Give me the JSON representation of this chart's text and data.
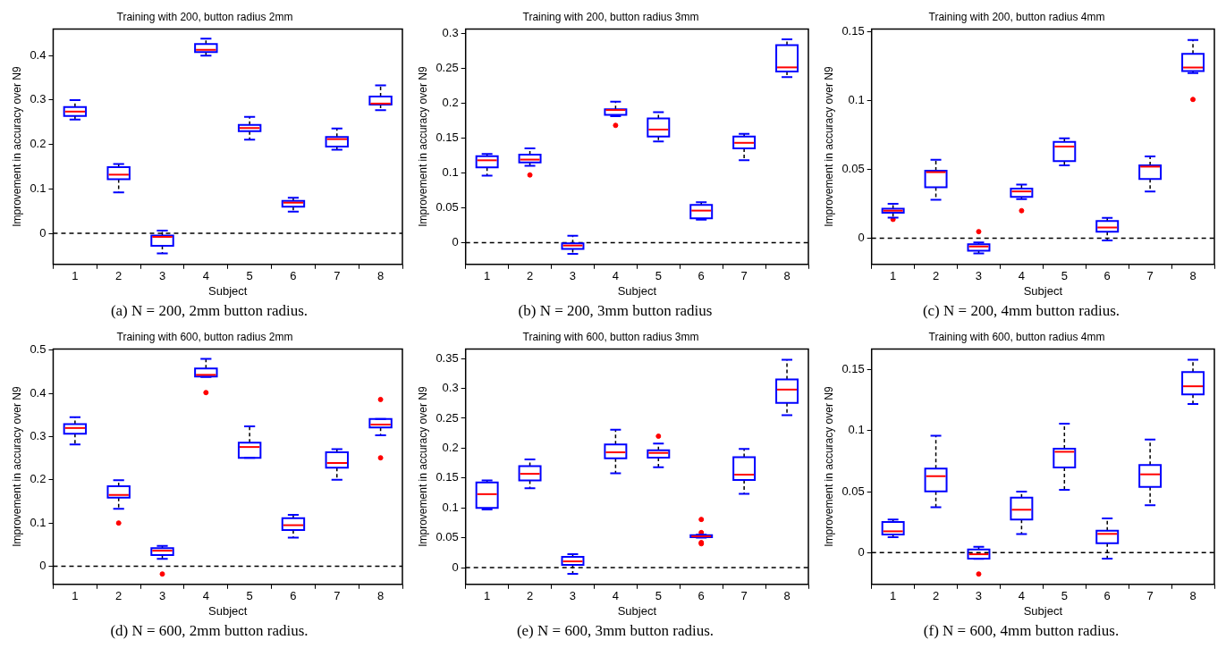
{
  "chart_data": [
    {
      "type": "box",
      "title": "Training with 200, button radius 2mm",
      "xlabel": "Subject",
      "ylabel": "Improvement in accuracy over N9",
      "categories": [
        "1",
        "2",
        "3",
        "4",
        "5",
        "6",
        "7",
        "8"
      ],
      "ylim": [
        -0.07,
        0.46
      ],
      "yticks": [
        0,
        0.1,
        0.2,
        0.3,
        0.4
      ],
      "grid": false,
      "series": [
        {
          "color": "#0000ff",
          "boxes": [
            {
              "low": 0.256,
              "q1": 0.264,
              "median": 0.274,
              "q3": 0.284,
              "high": 0.3
            },
            {
              "low": 0.092,
              "q1": 0.122,
              "median": 0.132,
              "q3": 0.149,
              "high": 0.156
            },
            {
              "low": -0.045,
              "q1": -0.028,
              "median": -0.008,
              "q3": -0.005,
              "high": 0.006
            },
            {
              "low": 0.4,
              "q1": 0.408,
              "median": 0.413,
              "q3": 0.426,
              "high": 0.438
            },
            {
              "low": 0.211,
              "q1": 0.23,
              "median": 0.237,
              "q3": 0.244,
              "high": 0.262
            },
            {
              "low": 0.049,
              "q1": 0.06,
              "median": 0.069,
              "q3": 0.073,
              "high": 0.08
            },
            {
              "low": 0.188,
              "q1": 0.195,
              "median": 0.212,
              "q3": 0.217,
              "high": 0.236
            },
            {
              "low": 0.277,
              "q1": 0.29,
              "median": 0.292,
              "q3": 0.308,
              "high": 0.333
            }
          ]
        }
      ],
      "ref_lines": [
        {
          "axis": "y",
          "value": 0,
          "color": "#000000",
          "line_style": "dashed"
        }
      ],
      "annotations": [
        "(a)  N = 200, 2mm button radius."
      ]
    },
    {
      "type": "box",
      "title": "Training with 200, button radius 3mm",
      "xlabel": "Subject",
      "ylabel": "Improvement in accuracy over N9",
      "categories": [
        "1",
        "2",
        "3",
        "4",
        "5",
        "6",
        "7",
        "8"
      ],
      "ylim": [
        -0.031,
        0.306
      ],
      "yticks": [
        0,
        0.05,
        0.1,
        0.15,
        0.2,
        0.25,
        0.3
      ],
      "grid": false,
      "series": [
        {
          "color": "#0000ff",
          "boxes": [
            {
              "low": 0.096,
              "q1": 0.108,
              "median": 0.118,
              "q3": 0.124,
              "high": 0.127
            },
            {
              "low": 0.11,
              "q1": 0.115,
              "median": 0.119,
              "q3": 0.126,
              "high": 0.135,
              "outliers": [
                0.097
              ]
            },
            {
              "low": -0.016,
              "q1": -0.009,
              "median": -0.004,
              "q3": -0.001,
              "high": 0.01
            },
            {
              "low": 0.181,
              "q1": 0.183,
              "median": 0.19,
              "q3": 0.191,
              "high": 0.202,
              "outliers": [
                0.168
              ]
            },
            {
              "low": 0.145,
              "q1": 0.152,
              "median": 0.162,
              "q3": 0.178,
              "high": 0.187
            },
            {
              "low": 0.033,
              "q1": 0.035,
              "median": 0.046,
              "q3": 0.054,
              "high": 0.058
            },
            {
              "low": 0.118,
              "q1": 0.135,
              "median": 0.143,
              "q3": 0.152,
              "high": 0.156
            },
            {
              "low": 0.237,
              "q1": 0.245,
              "median": 0.251,
              "q3": 0.283,
              "high": 0.291
            }
          ]
        }
      ],
      "ref_lines": [
        {
          "axis": "y",
          "value": 0,
          "color": "#000000",
          "line_style": "dashed"
        }
      ],
      "annotations": [
        "(b)  N = 200, 3mm button radius"
      ]
    },
    {
      "type": "box",
      "title": "Training with 200, button radius 4mm",
      "xlabel": "Subject",
      "ylabel": "Improvement in accuracy over N9",
      "categories": [
        "1",
        "2",
        "3",
        "4",
        "5",
        "6",
        "7",
        "8"
      ],
      "ylim": [
        -0.019,
        0.152
      ],
      "yticks": [
        0,
        0.05,
        0.1,
        0.15
      ],
      "grid": false,
      "series": [
        {
          "color": "#0000ff",
          "boxes": [
            {
              "low": 0.015,
              "q1": 0.0185,
              "median": 0.02,
              "q3": 0.0214,
              "high": 0.025,
              "outliers": [
                0.0137
              ]
            },
            {
              "low": 0.028,
              "q1": 0.037,
              "median": 0.048,
              "q3": 0.049,
              "high": 0.057
            },
            {
              "low": -0.011,
              "q1": -0.009,
              "median": -0.006,
              "q3": -0.0043,
              "high": -0.003,
              "outliers": [
                0.0048
              ]
            },
            {
              "low": 0.0285,
              "q1": 0.03,
              "median": 0.034,
              "q3": 0.036,
              "high": 0.039,
              "outliers": [
                0.02
              ]
            },
            {
              "low": 0.053,
              "q1": 0.056,
              "median": 0.0666,
              "q3": 0.07,
              "high": 0.0725
            },
            {
              "low": -0.0016,
              "q1": 0.0048,
              "median": 0.0078,
              "q3": 0.0125,
              "high": 0.0148
            },
            {
              "low": 0.034,
              "q1": 0.043,
              "median": 0.052,
              "q3": 0.053,
              "high": 0.0595
            },
            {
              "low": 0.12,
              "q1": 0.1215,
              "median": 0.124,
              "q3": 0.134,
              "high": 0.144,
              "outliers": [
                0.1008
              ]
            }
          ]
        }
      ],
      "ref_lines": [
        {
          "axis": "y",
          "value": 0,
          "color": "#000000",
          "line_style": "dashed"
        }
      ],
      "annotations": [
        "(c)  N = 200, 4mm button radius."
      ]
    },
    {
      "type": "box",
      "title": "Training with 600, button radius 2mm",
      "xlabel": "Subject",
      "ylabel": "Improvement in accuracy over N9",
      "categories": [
        "1",
        "2",
        "3",
        "4",
        "5",
        "6",
        "7",
        "8"
      ],
      "ylim": [
        -0.042,
        0.503
      ],
      "yticks": [
        0,
        0.1,
        0.2,
        0.3,
        0.4,
        0.5
      ],
      "grid": false,
      "series": [
        {
          "color": "#0000ff",
          "boxes": [
            {
              "low": 0.282,
              "q1": 0.307,
              "median": 0.32,
              "q3": 0.329,
              "high": 0.345
            },
            {
              "low": 0.133,
              "q1": 0.159,
              "median": 0.165,
              "q3": 0.185,
              "high": 0.199,
              "outliers": [
                0.1
              ]
            },
            {
              "low": 0.017,
              "q1": 0.026,
              "median": 0.036,
              "q3": 0.042,
              "high": 0.047,
              "outliers": [
                -0.018
              ]
            },
            {
              "low": 0.438,
              "q1": 0.439,
              "median": 0.443,
              "q3": 0.458,
              "high": 0.48,
              "outliers": [
                0.402
              ]
            },
            {
              "low": 0.251,
              "q1": 0.251,
              "median": 0.276,
              "q3": 0.286,
              "high": 0.324
            },
            {
              "low": 0.066,
              "q1": 0.084,
              "median": 0.095,
              "q3": 0.111,
              "high": 0.119
            },
            {
              "low": 0.2,
              "q1": 0.228,
              "median": 0.239,
              "q3": 0.264,
              "high": 0.271
            },
            {
              "low": 0.303,
              "q1": 0.321,
              "median": 0.328,
              "q3": 0.341,
              "high": 0.341,
              "outliers": [
                0.386,
                0.251
              ]
            }
          ]
        }
      ],
      "ref_lines": [
        {
          "axis": "y",
          "value": 0,
          "color": "#000000",
          "line_style": "dashed"
        }
      ],
      "annotations": [
        "(d)  N = 600, 2mm button radius."
      ]
    },
    {
      "type": "box",
      "title": "Training with 600, button radius 3mm",
      "xlabel": "Subject",
      "ylabel": "Improvement in accuracy over N9",
      "categories": [
        "1",
        "2",
        "3",
        "4",
        "5",
        "6",
        "7",
        "8"
      ],
      "ylim": [
        -0.028,
        0.366
      ],
      "yticks": [
        0,
        0.05,
        0.1,
        0.15,
        0.2,
        0.25,
        0.3,
        0.35
      ],
      "grid": false,
      "series": [
        {
          "color": "#0000ff",
          "boxes": [
            {
              "low": 0.0975,
              "q1": 0.1,
              "median": 0.123,
              "q3": 0.1425,
              "high": 0.146
            },
            {
              "low": 0.133,
              "q1": 0.146,
              "median": 0.157,
              "q3": 0.17,
              "high": 0.181
            },
            {
              "low": -0.0105,
              "q1": 0.0047,
              "median": 0.0105,
              "q3": 0.018,
              "high": 0.0225
            },
            {
              "low": 0.158,
              "q1": 0.183,
              "median": 0.193,
              "q3": 0.206,
              "high": 0.231
            },
            {
              "low": 0.168,
              "q1": 0.184,
              "median": 0.192,
              "q3": 0.1965,
              "high": 0.2075,
              "outliers": [
                0.22
              ]
            },
            {
              "low": 0.0503,
              "q1": 0.0508,
              "median": 0.0524,
              "q3": 0.0545,
              "high": 0.055,
              "outliers": [
                0.0807,
                0.0587,
                0.042,
                0.04
              ]
            },
            {
              "low": 0.1237,
              "q1": 0.1467,
              "median": 0.1556,
              "q3": 0.185,
              "high": 0.1986
            },
            {
              "low": 0.255,
              "q1": 0.2756,
              "median": 0.298,
              "q3": 0.315,
              "high": 0.348
            }
          ]
        }
      ],
      "ref_lines": [
        {
          "axis": "y",
          "value": 0,
          "color": "#000000",
          "line_style": "dashed"
        }
      ],
      "annotations": [
        "(e)  N = 600, 3mm button radius."
      ]
    },
    {
      "type": "box",
      "title": "Training with 600, button radius 4mm",
      "xlabel": "Subject",
      "ylabel": "Improvement in accuracy over N9",
      "categories": [
        "1",
        "2",
        "3",
        "4",
        "5",
        "6",
        "7",
        "8"
      ],
      "ylim": [
        -0.026,
        0.167
      ],
      "yticks": [
        0,
        0.05,
        0.1,
        0.15
      ],
      "grid": false,
      "series": [
        {
          "color": "#0000ff",
          "boxes": [
            {
              "low": 0.0126,
              "q1": 0.0149,
              "median": 0.0175,
              "q3": 0.0252,
              "high": 0.0272
            },
            {
              "low": 0.0372,
              "q1": 0.0503,
              "median": 0.0627,
              "q3": 0.069,
              "high": 0.0958
            },
            {
              "low": -0.005,
              "q1": -0.0049,
              "median": -0.0013,
              "q3": 0.0026,
              "high": 0.0049,
              "outliers": [
                -0.0175
              ]
            },
            {
              "low": 0.0152,
              "q1": 0.0272,
              "median": 0.0352,
              "q3": 0.0452,
              "high": 0.05
            },
            {
              "low": 0.0516,
              "q1": 0.0699,
              "median": 0.0827,
              "q3": 0.0853,
              "high": 0.1058
            },
            {
              "low": -0.0049,
              "q1": 0.0077,
              "median": 0.0154,
              "q3": 0.018,
              "high": 0.028
            },
            {
              "low": 0.0388,
              "q1": 0.0539,
              "median": 0.0642,
              "q3": 0.0719,
              "high": 0.0927
            },
            {
              "low": 0.1218,
              "q1": 0.1297,
              "median": 0.1364,
              "q3": 0.148,
              "high": 0.1582
            }
          ]
        }
      ],
      "ref_lines": [
        {
          "axis": "y",
          "value": 0,
          "color": "#000000",
          "line_style": "dashed"
        }
      ],
      "annotations": [
        "(f)  N = 600, 4mm button radius."
      ]
    }
  ]
}
